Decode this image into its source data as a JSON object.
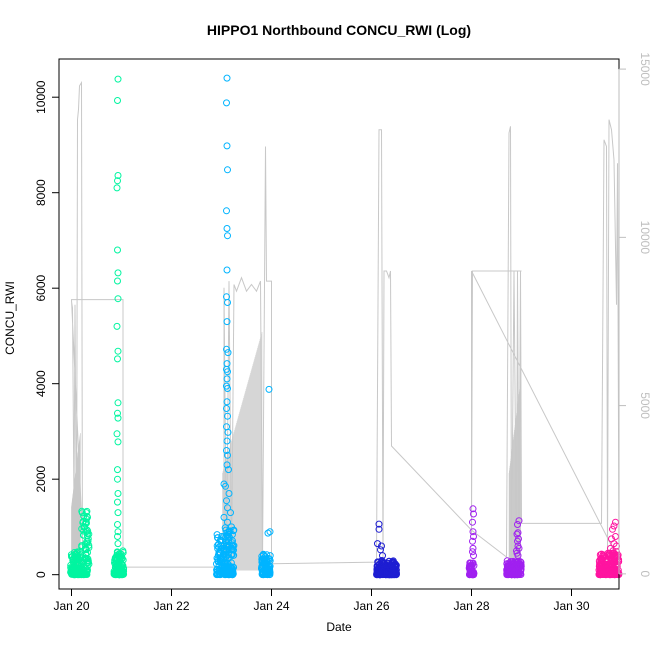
{
  "chart_data": {
    "type": "scatter",
    "title": "HIPPO1 Northbound CONCU_RWI (Log)",
    "xlabel": "Date",
    "ylabel": "CONCU_RWI",
    "x_ticks": [
      "Jan 20",
      "Jan 22",
      "Jan 24",
      "Jan 26",
      "Jan 28",
      "Jan 30"
    ],
    "x_range_days": [
      "Jan 19.75",
      "Jan 30.95"
    ],
    "y_ticks": [
      0,
      2000,
      4000,
      6000,
      8000,
      10000
    ],
    "ylim": [
      -300,
      10800
    ],
    "y2_ticks": [
      0,
      5000,
      10000,
      15000
    ],
    "y2lim": [
      -450,
      15300
    ],
    "y2_color": "#bebebe",
    "grid": false,
    "line_series_color": "#c8c8c8",
    "groups": [
      {
        "color": "#00f5a0",
        "clusters": [
          {
            "x_from": 19.98,
            "x_to": 20.2,
            "y_max": 480
          },
          {
            "x_from": 20.2,
            "x_to": 20.35,
            "y_max": 1350
          },
          {
            "x_from": 20.85,
            "x_to": 21.05,
            "y_max": 500
          }
        ],
        "high_points": [
          [
            20.93,
            10380
          ],
          [
            20.92,
            9930
          ],
          [
            20.93,
            8360
          ],
          [
            20.92,
            8250
          ],
          [
            20.91,
            8100
          ],
          [
            20.92,
            6800
          ],
          [
            20.93,
            6320
          ],
          [
            20.92,
            6150
          ],
          [
            20.93,
            5780
          ],
          [
            20.91,
            5200
          ],
          [
            20.93,
            4680
          ],
          [
            20.92,
            4520
          ],
          [
            20.93,
            3600
          ],
          [
            20.92,
            3380
          ],
          [
            20.93,
            3280
          ],
          [
            20.91,
            2950
          ],
          [
            20.93,
            2780
          ],
          [
            20.92,
            2200
          ],
          [
            20.92,
            2000
          ],
          [
            20.93,
            1700
          ],
          [
            20.92,
            1520
          ],
          [
            20.93,
            1300
          ],
          [
            20.92,
            1050
          ],
          [
            20.93,
            900
          ],
          [
            20.92,
            800
          ],
          [
            20.93,
            650
          ],
          [
            20.32,
            1200
          ],
          [
            20.3,
            900
          ],
          [
            20.33,
            700
          ],
          [
            20.28,
            550
          ]
        ]
      },
      {
        "color": "#00b4ff",
        "clusters": [
          {
            "x_from": 22.9,
            "x_to": 23.25,
            "y_max": 1000
          },
          {
            "x_from": 23.8,
            "x_to": 23.98,
            "y_max": 450
          }
        ],
        "high_points": [
          [
            23.11,
            10400
          ],
          [
            23.1,
            9880
          ],
          [
            23.11,
            8980
          ],
          [
            23.12,
            8480
          ],
          [
            23.1,
            7620
          ],
          [
            23.11,
            7250
          ],
          [
            23.12,
            7100
          ],
          [
            23.11,
            6380
          ],
          [
            23.1,
            5820
          ],
          [
            23.12,
            5700
          ],
          [
            23.11,
            5300
          ],
          [
            23.1,
            4720
          ],
          [
            23.13,
            4650
          ],
          [
            23.11,
            4420
          ],
          [
            23.1,
            4300
          ],
          [
            23.12,
            4250
          ],
          [
            23.11,
            4100
          ],
          [
            23.1,
            3950
          ],
          [
            23.12,
            3900
          ],
          [
            23.11,
            3620
          ],
          [
            23.1,
            3480
          ],
          [
            23.12,
            3320
          ],
          [
            23.1,
            3100
          ],
          [
            23.13,
            2980
          ],
          [
            23.11,
            2800
          ],
          [
            23.1,
            2600
          ],
          [
            23.12,
            2500
          ],
          [
            23.11,
            2300
          ],
          [
            23.14,
            2200
          ],
          [
            23.05,
            1900
          ],
          [
            23.08,
            1850
          ],
          [
            23.15,
            1700
          ],
          [
            23.1,
            1550
          ],
          [
            23.12,
            1400
          ],
          [
            23.18,
            1300
          ],
          [
            23.05,
            1200
          ],
          [
            23.12,
            1100
          ],
          [
            23.2,
            1000
          ],
          [
            23.95,
            3880
          ],
          [
            23.97,
            900
          ],
          [
            23.93,
            870
          ]
        ]
      },
      {
        "color": "#1e1ed2",
        "clusters": [
          {
            "x_from": 26.1,
            "x_to": 26.5,
            "y_max": 300
          }
        ],
        "high_points": [
          [
            26.15,
            1060
          ],
          [
            26.15,
            950
          ],
          [
            26.12,
            650
          ],
          [
            26.2,
            600
          ],
          [
            26.18,
            520
          ],
          [
            26.22,
            400
          ]
        ]
      },
      {
        "color": "#a020f0",
        "clusters": [
          {
            "x_from": 27.95,
            "x_to": 28.05,
            "y_max": 250
          },
          {
            "x_from": 28.7,
            "x_to": 29.0,
            "y_max": 300
          }
        ],
        "high_points": [
          [
            28.03,
            1380
          ],
          [
            28.04,
            1270
          ],
          [
            28.02,
            1100
          ],
          [
            28.03,
            900
          ],
          [
            28.04,
            800
          ],
          [
            28.02,
            700
          ],
          [
            28.03,
            550
          ],
          [
            28.02,
            480
          ],
          [
            28.04,
            400
          ],
          [
            28.95,
            1130
          ],
          [
            28.92,
            1050
          ],
          [
            28.93,
            880
          ],
          [
            28.91,
            850
          ],
          [
            28.94,
            750
          ],
          [
            28.92,
            700
          ],
          [
            28.93,
            600
          ],
          [
            28.95,
            550
          ],
          [
            28.9,
            500
          ],
          [
            28.91,
            450
          ],
          [
            28.93,
            400
          ]
        ]
      },
      {
        "color": "#ff14a0",
        "clusters": [
          {
            "x_from": 30.55,
            "x_to": 30.95,
            "y_max": 450
          }
        ],
        "high_points": [
          [
            30.88,
            1100
          ],
          [
            30.85,
            1020
          ],
          [
            30.82,
            950
          ],
          [
            30.88,
            800
          ],
          [
            30.8,
            750
          ],
          [
            30.85,
            650
          ],
          [
            30.9,
            600
          ],
          [
            30.78,
            550
          ],
          [
            30.83,
            500
          ],
          [
            30.9,
            480
          ]
        ]
      }
    ],
    "line_segments": [
      [
        20.0,
        8100
      ],
      [
        20.02,
        7900
      ],
      [
        20.05,
        2000
      ],
      [
        20.07,
        8000
      ],
      [
        20.1,
        200
      ],
      [
        20.12,
        13500
      ],
      [
        20.14,
        13800
      ],
      [
        20.16,
        14500
      ],
      [
        20.2,
        14600
      ],
      [
        20.22,
        150
      ],
      [
        20.25,
        150
      ],
      [
        20.0,
        8150
      ],
      [
        21.03,
        8150
      ],
      [
        21.03,
        200
      ],
      [
        23.05,
        200
      ],
      [
        23.05,
        8500
      ],
      [
        23.1,
        200
      ],
      [
        23.15,
        8700
      ],
      [
        23.2,
        300
      ],
      [
        23.25,
        8600
      ],
      [
        23.3,
        8400
      ],
      [
        23.4,
        8800
      ],
      [
        23.5,
        8400
      ],
      [
        23.6,
        8600
      ],
      [
        23.7,
        8400
      ],
      [
        23.78,
        8700
      ],
      [
        23.82,
        300
      ],
      [
        23.88,
        12700
      ],
      [
        23.9,
        8700
      ],
      [
        24.0,
        8700
      ],
      [
        24.0,
        300
      ],
      [
        26.1,
        350
      ],
      [
        26.15,
        13200
      ],
      [
        26.2,
        13200
      ],
      [
        26.23,
        300
      ],
      [
        26.25,
        9000
      ],
      [
        26.3,
        9000
      ],
      [
        26.35,
        8800
      ],
      [
        26.38,
        9000
      ],
      [
        26.4,
        3800
      ],
      [
        28.0,
        1300
      ],
      [
        28.7,
        500
      ],
      [
        28.75,
        13100
      ],
      [
        28.78,
        13300
      ],
      [
        28.8,
        400
      ],
      [
        28.85,
        9000
      ],
      [
        28.9,
        500
      ],
      [
        28.92,
        9000
      ],
      [
        28.95,
        600
      ],
      [
        28.98,
        9000
      ],
      [
        29.0,
        1500
      ],
      [
        30.6,
        1500
      ],
      [
        30.65,
        12900
      ],
      [
        30.7,
        12700
      ],
      [
        30.72,
        600
      ],
      [
        30.75,
        13500
      ],
      [
        30.8,
        13200
      ],
      [
        30.85,
        12300
      ],
      [
        30.9,
        8000
      ],
      [
        30.92,
        12200
      ],
      [
        30.95,
        400
      ],
      [
        28.0,
        9000
      ],
      [
        28.0,
        1200
      ],
      [
        28.02,
        9000
      ],
      [
        29.0,
        9000
      ]
    ]
  }
}
